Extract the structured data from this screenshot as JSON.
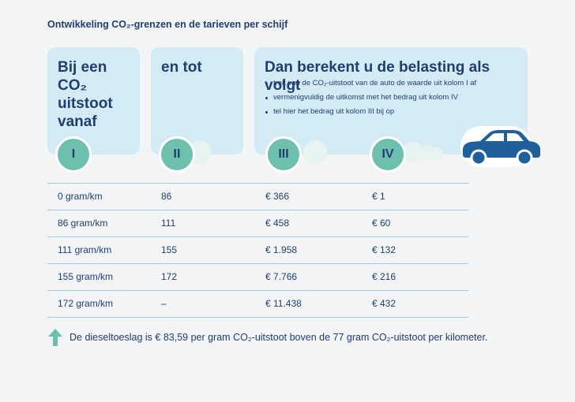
{
  "title": "Ontwikkeling CO₂-grenzen en de tarieven per schijf",
  "columns": {
    "col1_heading": "Bij een CO₂\nuitstoot\nvanaf",
    "col2_heading": "en tot",
    "col3_heading": "Dan berekent u de belasting als volgt",
    "badges": [
      "I",
      "II",
      "III",
      "IV"
    ]
  },
  "instructions": [
    "trek van de CO₂-uitstoot van de auto de waarde uit kolom I af",
    "vermenigvuldig de uitkomst met het bedrag uit kolom IV",
    "tel hier het bedrag uit kolom III bij op"
  ],
  "rows": [
    [
      "0 gram/km",
      "86",
      "€ 366",
      "€ 1"
    ],
    [
      "86 gram/km",
      "111",
      "€ 458",
      "€ 60"
    ],
    [
      "111 gram/km",
      "155",
      "€ 1.958",
      "€ 132"
    ],
    [
      "155 gram/km",
      "172",
      "€ 7.766",
      "€ 216"
    ],
    [
      "172 gram/km",
      "–",
      "€ 11.438",
      "€ 432"
    ]
  ],
  "note": "De dieseltoeslag is € 83,59 per gram CO₂-uitstoot boven de 77 gram CO₂-uitstoot per kilometer.",
  "colors": {
    "panel": "#d4ebf6",
    "badge": "#6dbfae",
    "text": "#1f3f6e",
    "car": "#1e5f9c",
    "rule": "#9fcbe6"
  },
  "icons": [
    "car-icon",
    "arrow-up-icon"
  ]
}
